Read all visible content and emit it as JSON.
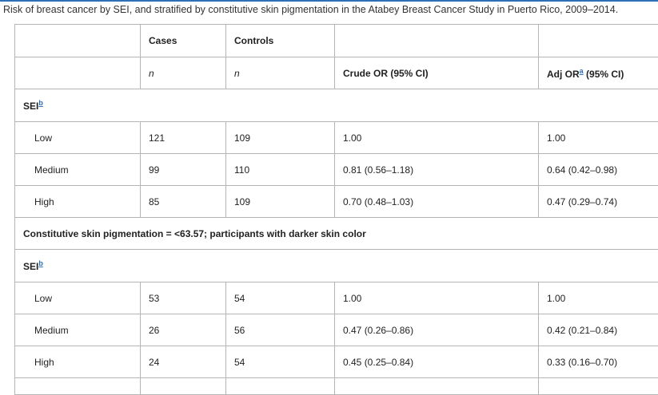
{
  "caption": "Risk of breast cancer by SEI, and stratified by constitutive skin pigmentation in the Atabey Breast Cancer Study in Puerto Rico, 2009–2014.",
  "header": {
    "cases": "Cases",
    "controls": "Controls",
    "n_cases": "n",
    "n_controls": "n",
    "crude_or": "Crude OR (95% CI)",
    "adj_or": "Adj OR",
    "adj_or_sup": "a",
    "adj_or_rest": " (95% CI)"
  },
  "section1": {
    "sei_label": "SEI",
    "sei_sup": "b",
    "rows": [
      {
        "label": "Low",
        "cases": "121",
        "controls": "109",
        "crude": "1.00",
        "adj": "1.00"
      },
      {
        "label": "Medium",
        "cases": "99",
        "controls": "110",
        "crude": "0.81 (0.56–1.18)",
        "adj": "0.64 (0.42–0.98)"
      },
      {
        "label": "High",
        "cases": "85",
        "controls": "109",
        "crude": "0.70 (0.48–1.03)",
        "adj": "0.47 (0.29–0.74)"
      }
    ]
  },
  "section2": {
    "title": "Constitutive skin pigmentation = <63.57; participants with darker skin color",
    "sei_label": "SEI",
    "sei_sup": "b",
    "rows": [
      {
        "label": "Low",
        "cases": "53",
        "controls": "54",
        "crude": "1.00",
        "adj": "1.00"
      },
      {
        "label": "Medium",
        "cases": "26",
        "controls": "56",
        "crude": "0.47 (0.26–0.86)",
        "adj": "0.42 (0.21–0.84)"
      },
      {
        "label": "High",
        "cases": "24",
        "controls": "54",
        "crude": "0.45 (0.25–0.84)",
        "adj": "0.33 (0.16–0.70)"
      }
    ]
  }
}
